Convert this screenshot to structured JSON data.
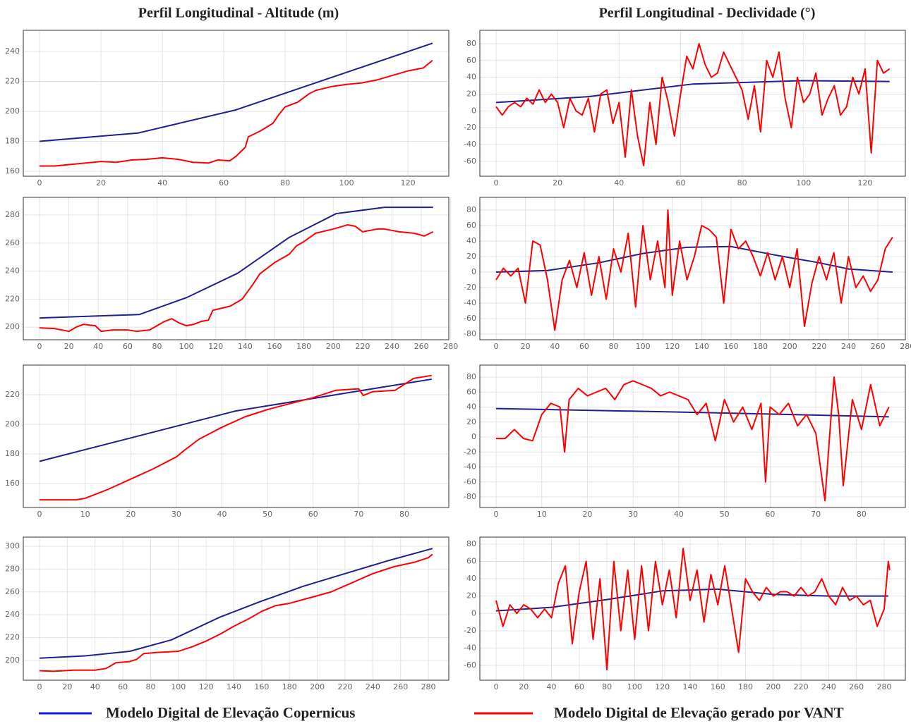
{
  "column_titles": [
    "Perfil Longitudinal - Altitude (m)",
    "Perfil Longitudinal - Declividade   (°)"
  ],
  "legend": [
    {
      "name": "Modelo Digital de Elevação Copernicus",
      "color": "#0b1fd6"
    },
    {
      "name": "Modelo Digital de Elevação gerado por VANT",
      "color": "#ff0000"
    }
  ],
  "chart_data": [
    {
      "type": "line",
      "grid": true,
      "xlim": [
        -5.3,
        133.3
      ],
      "ylim": [
        156.7,
        254.1
      ],
      "xticks": [
        0,
        20,
        40,
        60,
        80,
        100,
        120
      ],
      "yticks": [
        160,
        180,
        200,
        220,
        240
      ],
      "series": [
        {
          "color": "#1f1f8f",
          "x": [
            0,
            32,
            64,
            128
          ],
          "values": [
            180,
            185.5,
            201,
            245.5
          ]
        },
        {
          "color": "#ff0000",
          "x": [
            0,
            5,
            10,
            15,
            20,
            25,
            30,
            35,
            40,
            45,
            50,
            55,
            58,
            62,
            64,
            67,
            68,
            72,
            76,
            78,
            80,
            84,
            88,
            90,
            95,
            100,
            105,
            110,
            115,
            120,
            125,
            128
          ],
          "values": [
            163.5,
            163.5,
            164.5,
            165.5,
            166.5,
            166,
            167.5,
            168,
            169,
            168,
            166,
            165.5,
            167.5,
            167,
            170,
            176,
            183,
            187,
            192,
            198,
            203,
            206,
            212,
            214,
            216.5,
            218,
            219,
            221,
            224,
            227,
            229,
            234
          ]
        }
      ]
    },
    {
      "type": "line",
      "grid": true,
      "xlim": [
        -5.28,
        133.1
      ],
      "ylim": [
        -77.7,
        95.9
      ],
      "xticks": [
        0,
        20,
        40,
        60,
        80,
        100,
        120
      ],
      "yticks": [
        -60,
        -40,
        -20,
        0,
        20,
        40,
        60,
        80
      ],
      "series": [
        {
          "color": "#1f1f8f",
          "x": [
            0,
            30,
            64,
            100,
            128
          ],
          "values": [
            10,
            17,
            32,
            36,
            35
          ]
        },
        {
          "color": "#ff0000",
          "x": [
            0,
            2,
            4,
            6,
            8,
            10,
            12,
            14,
            16,
            18,
            20,
            22,
            24,
            26,
            28,
            30,
            32,
            34,
            36,
            38,
            40,
            42,
            44,
            46,
            48,
            50,
            52,
            54,
            56,
            58,
            60,
            62,
            64,
            66,
            68,
            70,
            72,
            74,
            76,
            78,
            80,
            82,
            84,
            86,
            88,
            90,
            92,
            94,
            96,
            98,
            100,
            102,
            104,
            106,
            108,
            110,
            112,
            114,
            116,
            118,
            120,
            122,
            124,
            126,
            128
          ],
          "values": [
            5,
            -5,
            5,
            10,
            5,
            15,
            8,
            25,
            10,
            20,
            10,
            -20,
            15,
            0,
            -5,
            15,
            -25,
            20,
            25,
            -15,
            10,
            -55,
            25,
            -30,
            -65,
            10,
            -40,
            40,
            10,
            -30,
            20,
            65,
            50,
            80,
            55,
            40,
            45,
            70,
            55,
            40,
            25,
            -10,
            30,
            -25,
            60,
            40,
            70,
            15,
            -20,
            40,
            10,
            20,
            45,
            -5,
            15,
            30,
            -5,
            5,
            40,
            20,
            50,
            -50,
            60,
            45,
            50
          ]
        }
      ]
    },
    {
      "type": "line",
      "grid": true,
      "xlim": [
        -11.05,
        278.7
      ],
      "ylim": [
        191.0,
        292.6
      ],
      "xticks": [
        0,
        20,
        40,
        60,
        80,
        100,
        120,
        140,
        160,
        180,
        200,
        220,
        240,
        260,
        280
      ],
      "yticks": [
        200,
        220,
        240,
        260,
        280
      ],
      "series": [
        {
          "color": "#1f1f8f",
          "x": [
            0,
            68,
            100,
            135,
            170,
            202,
            235,
            268
          ],
          "values": [
            206.5,
            209,
            221,
            238.5,
            264,
            281,
            285.5,
            285.5
          ]
        },
        {
          "color": "#ff0000",
          "x": [
            0,
            10,
            20,
            25,
            30,
            38,
            42,
            50,
            60,
            66,
            75,
            85,
            90,
            95,
            100,
            105,
            110,
            115,
            118,
            122,
            130,
            138,
            145,
            150,
            160,
            170,
            175,
            180,
            188,
            200,
            210,
            215,
            220,
            230,
            235,
            245,
            255,
            262,
            268
          ],
          "values": [
            199.5,
            199,
            197,
            200,
            202,
            201,
            197,
            198,
            198,
            197,
            198,
            204,
            206,
            203,
            201,
            202,
            204,
            205,
            212,
            213,
            215,
            220,
            230,
            238,
            246,
            252,
            258,
            261,
            267,
            270,
            273,
            272,
            268,
            270,
            270,
            268,
            267,
            265,
            268
          ]
        }
      ]
    },
    {
      "type": "line",
      "grid": true,
      "xlim": [
        -11.05,
        278.7
      ],
      "ylim": [
        -87.3,
        96.4
      ],
      "xticks": [
        0,
        20,
        40,
        60,
        80,
        100,
        120,
        140,
        160,
        180,
        200,
        220,
        240,
        260,
        280
      ],
      "yticks": [
        -80,
        -60,
        -40,
        -20,
        0,
        20,
        40,
        60,
        80
      ],
      "series": [
        {
          "color": "#1f1f8f",
          "x": [
            0,
            35,
            70,
            100,
            130,
            160,
            190,
            220,
            240,
            270
          ],
          "values": [
            0,
            2,
            12,
            24,
            32,
            33,
            22,
            12,
            4,
            0
          ]
        },
        {
          "color": "#ff0000",
          "x": [
            0,
            5,
            10,
            15,
            20,
            25,
            30,
            35,
            40,
            45,
            50,
            55,
            60,
            65,
            70,
            75,
            80,
            85,
            90,
            95,
            100,
            105,
            110,
            115,
            117,
            120,
            125,
            130,
            135,
            140,
            145,
            150,
            155,
            160,
            165,
            170,
            175,
            180,
            185,
            190,
            195,
            200,
            205,
            210,
            215,
            220,
            225,
            230,
            235,
            240,
            245,
            250,
            255,
            260,
            265,
            270
          ],
          "values": [
            -10,
            5,
            -5,
            5,
            -40,
            40,
            35,
            -10,
            -75,
            -10,
            15,
            -20,
            25,
            -30,
            20,
            -35,
            30,
            0,
            50,
            -45,
            60,
            -10,
            40,
            -20,
            80,
            -30,
            40,
            -10,
            20,
            60,
            55,
            45,
            -40,
            55,
            30,
            40,
            20,
            -5,
            25,
            -10,
            20,
            -20,
            30,
            -70,
            -15,
            20,
            -10,
            25,
            -40,
            20,
            -20,
            -5,
            -25,
            -10,
            30,
            45
          ]
        }
      ]
    },
    {
      "type": "line",
      "grid": true,
      "xlim": [
        -3.56,
        89.75
      ],
      "ylim": [
        143.8,
        240.0
      ],
      "xticks": [
        0,
        10,
        20,
        30,
        40,
        50,
        60,
        70,
        80
      ],
      "yticks": [
        160,
        180,
        200,
        220
      ],
      "series": [
        {
          "color": "#1f1f8f",
          "x": [
            0,
            43,
            86
          ],
          "values": [
            175,
            209,
            230.5
          ]
        },
        {
          "color": "#ff0000",
          "x": [
            0,
            8,
            10,
            15,
            20,
            25,
            30,
            32,
            35,
            40,
            45,
            50,
            55,
            60,
            65,
            70,
            71,
            73,
            78,
            82,
            86
          ],
          "values": [
            149,
            149,
            150,
            156,
            163,
            170,
            178,
            183,
            190,
            198,
            205,
            210,
            214,
            218,
            223,
            224,
            219.5,
            222,
            223,
            231,
            233
          ]
        }
      ]
    },
    {
      "type": "line",
      "grid": true,
      "xlim": [
        -3.55,
        89.6
      ],
      "ylim": [
        -94.1,
        96.0
      ],
      "xticks": [
        0,
        10,
        20,
        30,
        40,
        50,
        60,
        70,
        80
      ],
      "yticks": [
        -80,
        -60,
        -40,
        -20,
        0,
        20,
        40,
        60,
        80
      ],
      "series": [
        {
          "color": "#1f1f8f",
          "x": [
            0,
            43,
            86
          ],
          "values": [
            38,
            33,
            27
          ]
        },
        {
          "color": "#ff0000",
          "x": [
            0,
            2,
            4,
            6,
            8,
            10,
            12,
            14,
            15,
            16,
            18,
            20,
            22,
            24,
            26,
            28,
            30,
            32,
            34,
            36,
            38,
            40,
            42,
            44,
            46,
            48,
            50,
            52,
            54,
            56,
            58,
            59,
            60,
            62,
            64,
            66,
            68,
            70,
            72,
            73,
            74,
            75,
            76,
            78,
            80,
            82,
            84,
            86
          ],
          "values": [
            -2,
            -2,
            10,
            -2,
            -5,
            30,
            45,
            40,
            -20,
            50,
            65,
            55,
            60,
            65,
            50,
            70,
            75,
            70,
            65,
            55,
            60,
            55,
            50,
            30,
            45,
            -5,
            50,
            20,
            40,
            10,
            45,
            -60,
            40,
            30,
            45,
            15,
            30,
            5,
            -85,
            0,
            80,
            30,
            -65,
            50,
            10,
            70,
            15,
            40
          ]
        }
      ]
    },
    {
      "type": "line",
      "grid": true,
      "xlim": [
        -11.7,
        294.7
      ],
      "ylim": [
        182.7,
        308.0
      ],
      "xticks": [
        0,
        20,
        40,
        60,
        80,
        100,
        120,
        140,
        160,
        180,
        200,
        220,
        240,
        260,
        280
      ],
      "yticks": [
        200,
        220,
        240,
        260,
        280,
        300
      ],
      "series": [
        {
          "color": "#1f1f8f",
          "x": [
            0,
            33,
            65,
            95,
            130,
            160,
            190,
            220,
            250,
            283
          ],
          "values": [
            202,
            204,
            208,
            218,
            238,
            252,
            265,
            276,
            287,
            298
          ]
        },
        {
          "color": "#ff0000",
          "x": [
            0,
            10,
            25,
            40,
            48,
            55,
            65,
            70,
            75,
            85,
            100,
            110,
            120,
            130,
            140,
            150,
            160,
            170,
            180,
            195,
            210,
            225,
            240,
            255,
            270,
            280,
            283
          ],
          "values": [
            191,
            190.5,
            191.5,
            191.5,
            193,
            198,
            199,
            201,
            206,
            207,
            208,
            212,
            217,
            223,
            230,
            236,
            243,
            248,
            250,
            255,
            260,
            268,
            276,
            282,
            286,
            290,
            293
          ]
        }
      ]
    },
    {
      "type": "line",
      "grid": true,
      "xlim": [
        -11.7,
        295.3
      ],
      "ylim": [
        -77.1,
        88.1
      ],
      "xticks": [
        0,
        20,
        40,
        60,
        80,
        100,
        120,
        140,
        160,
        180,
        200,
        220,
        240,
        260,
        280
      ],
      "yticks": [
        -60,
        -40,
        -20,
        0,
        20,
        40,
        60,
        80
      ],
      "series": [
        {
          "color": "#1f1f8f",
          "x": [
            0,
            40,
            80,
            120,
            160,
            200,
            240,
            283
          ],
          "values": [
            3,
            7,
            16,
            26,
            28,
            22,
            20,
            20
          ]
        },
        {
          "color": "#ff0000",
          "x": [
            0,
            5,
            10,
            15,
            20,
            25,
            30,
            35,
            40,
            45,
            50,
            55,
            60,
            65,
            70,
            75,
            80,
            85,
            90,
            95,
            100,
            105,
            110,
            115,
            120,
            125,
            130,
            135,
            140,
            145,
            150,
            155,
            160,
            165,
            170,
            175,
            180,
            185,
            190,
            195,
            200,
            205,
            210,
            215,
            220,
            225,
            230,
            235,
            240,
            245,
            250,
            255,
            260,
            265,
            270,
            275,
            280,
            283,
            284
          ],
          "values": [
            15,
            -15,
            10,
            0,
            10,
            5,
            -5,
            5,
            -5,
            35,
            55,
            -35,
            25,
            60,
            -30,
            40,
            -65,
            60,
            -20,
            50,
            -30,
            55,
            -20,
            60,
            10,
            50,
            -5,
            75,
            15,
            50,
            -10,
            45,
            10,
            55,
            5,
            -45,
            40,
            25,
            15,
            30,
            20,
            25,
            25,
            20,
            30,
            20,
            25,
            40,
            20,
            10,
            30,
            15,
            20,
            10,
            15,
            -15,
            5,
            60,
            50
          ]
        }
      ]
    }
  ]
}
